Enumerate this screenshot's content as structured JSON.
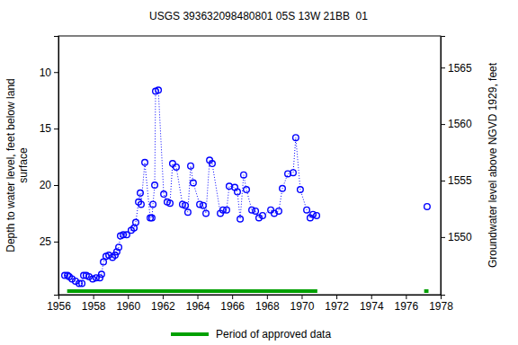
{
  "chart_data": {
    "type": "scatter",
    "title": "USGS 393632098480801 05S 13W 21BB  01",
    "ylabel": [
      "Depth to water level, feet below land",
      "surface"
    ],
    "y2label": "Groundwater level above NGVD 1929, feet",
    "color": "#0000ff",
    "marker": "circle",
    "line_style": "dotted",
    "x": [
      1956.36,
      1956.52,
      1956.62,
      1956.78,
      1956.98,
      1957.19,
      1957.35,
      1957.45,
      1957.6,
      1957.76,
      1957.97,
      1958.17,
      1958.38,
      1958.48,
      1958.59,
      1958.74,
      1958.9,
      1959.11,
      1959.26,
      1959.36,
      1959.47,
      1959.57,
      1959.73,
      1959.93,
      1960.19,
      1960.35,
      1960.45,
      1960.61,
      1960.71,
      1960.76,
      1960.97,
      1961.28,
      1961.38,
      1961.44,
      1961.54,
      1961.59,
      1961.75,
      1962.06,
      1962.26,
      1962.42,
      1962.57,
      1962.78,
      1963.14,
      1963.3,
      1963.45,
      1963.61,
      1963.76,
      1964.13,
      1964.33,
      1964.49,
      1964.7,
      1964.85,
      1965.32,
      1965.47,
      1965.68,
      1965.83,
      1966.15,
      1966.3,
      1966.46,
      1966.66,
      1966.82,
      1967.13,
      1967.34,
      1967.54,
      1967.75,
      1968.22,
      1968.42,
      1968.68,
      1968.89,
      1969.2,
      1969.51,
      1969.66,
      1969.92,
      1970.29,
      1970.49,
      1970.65,
      1970.86,
      null,
      1977.22
    ],
    "values": [
      28.0,
      28.0,
      28.1,
      28.3,
      28.5,
      28.7,
      28.7,
      28.0,
      28.0,
      28.1,
      28.3,
      28.2,
      28.2,
      27.9,
      26.8,
      26.3,
      26.2,
      26.4,
      26.2,
      25.9,
      25.5,
      24.5,
      24.4,
      24.4,
      24.0,
      23.8,
      23.3,
      21.5,
      20.7,
      21.7,
      18.0,
      22.9,
      22.9,
      21.7,
      20.0,
      11.7,
      11.6,
      20.8,
      21.5,
      21.6,
      18.1,
      18.4,
      21.7,
      21.8,
      22.4,
      18.3,
      19.8,
      21.7,
      21.8,
      22.5,
      17.8,
      18.1,
      22.5,
      22.2,
      22.2,
      20.1,
      20.2,
      20.6,
      23.0,
      19.1,
      20.4,
      22.2,
      22.3,
      22.9,
      22.7,
      22.2,
      22.5,
      22.3,
      20.3,
      19.0,
      18.9,
      15.8,
      20.4,
      22.2,
      22.9,
      22.6,
      22.7,
      null,
      21.9
    ],
    "xlim": [
      1956,
      1978
    ],
    "xticks": [
      1956,
      1958,
      1960,
      1962,
      1964,
      1966,
      1968,
      1970,
      1972,
      1974,
      1976,
      1978
    ],
    "ylim": [
      29.7,
      6.8
    ],
    "yticks": [
      10,
      15,
      20,
      25
    ],
    "y2lim": [
      1544.9,
      1567.8
    ],
    "y2ticks": [
      1550,
      1555,
      1560,
      1565
    ],
    "approved_periods": {
      "name": "Period of approved data",
      "color": "#00a000",
      "ranges": [
        [
          1956.5,
          1970.9
        ],
        [
          1977.05,
          1977.3
        ]
      ]
    }
  }
}
